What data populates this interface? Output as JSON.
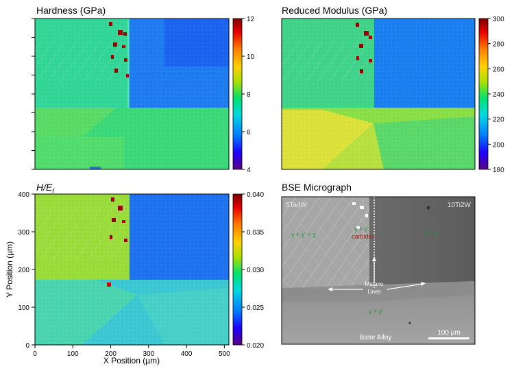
{
  "chart_data": [
    {
      "type": "heatmap",
      "title": "Hardness (GPa)",
      "colorbar": {
        "min": 4,
        "max": 12,
        "ticks": [
          4,
          6,
          8,
          10,
          12
        ]
      },
      "xlim": [
        0,
        512
      ],
      "ylim": [
        0,
        400
      ]
    },
    {
      "type": "heatmap",
      "title": "Reduced Modulus (GPa)",
      "colorbar": {
        "min": 180,
        "max": 300,
        "ticks": [
          180,
          200,
          220,
          240,
          260,
          280,
          300
        ]
      },
      "xlim": [
        0,
        512
      ],
      "ylim": [
        0,
        400
      ]
    },
    {
      "type": "heatmap",
      "title_main": "H/E",
      "title_sub": "r",
      "colorbar": {
        "min": 0.02,
        "max": 0.04,
        "ticks": [
          "0.020",
          "0.025",
          "0.030",
          "0.035",
          "0.040"
        ]
      },
      "xlabel": "X Position (µm)",
      "ylabel": "Y Position (µm)",
      "xticks": [
        0,
        100,
        200,
        300,
        400,
        500
      ],
      "yticks": [
        0,
        100,
        200,
        300,
        400
      ],
      "xlim": [
        0,
        512
      ],
      "ylim": [
        0,
        400
      ]
    }
  ],
  "micrograph": {
    "title": "BSE Micrograph",
    "labels": {
      "left_region": "5Ta4W",
      "right_region": "10Ti2W",
      "phase_left": "γ + γ′ + χ",
      "phase_mid": "γ + γ′",
      "carbides": "carbides",
      "phase_right": "γ + γ′",
      "matano": "Matano",
      "matano2": "Lines",
      "phase_bottom": "γ + γ′",
      "base": "Base Alloy",
      "scale": "100 µm"
    }
  },
  "colors": {
    "colormap": [
      "#5a0080",
      "#1e00ff",
      "#0078ff",
      "#00d8e0",
      "#00e070",
      "#a8e000",
      "#ffd200",
      "#ff7a00",
      "#e80000",
      "#7a0000"
    ]
  }
}
